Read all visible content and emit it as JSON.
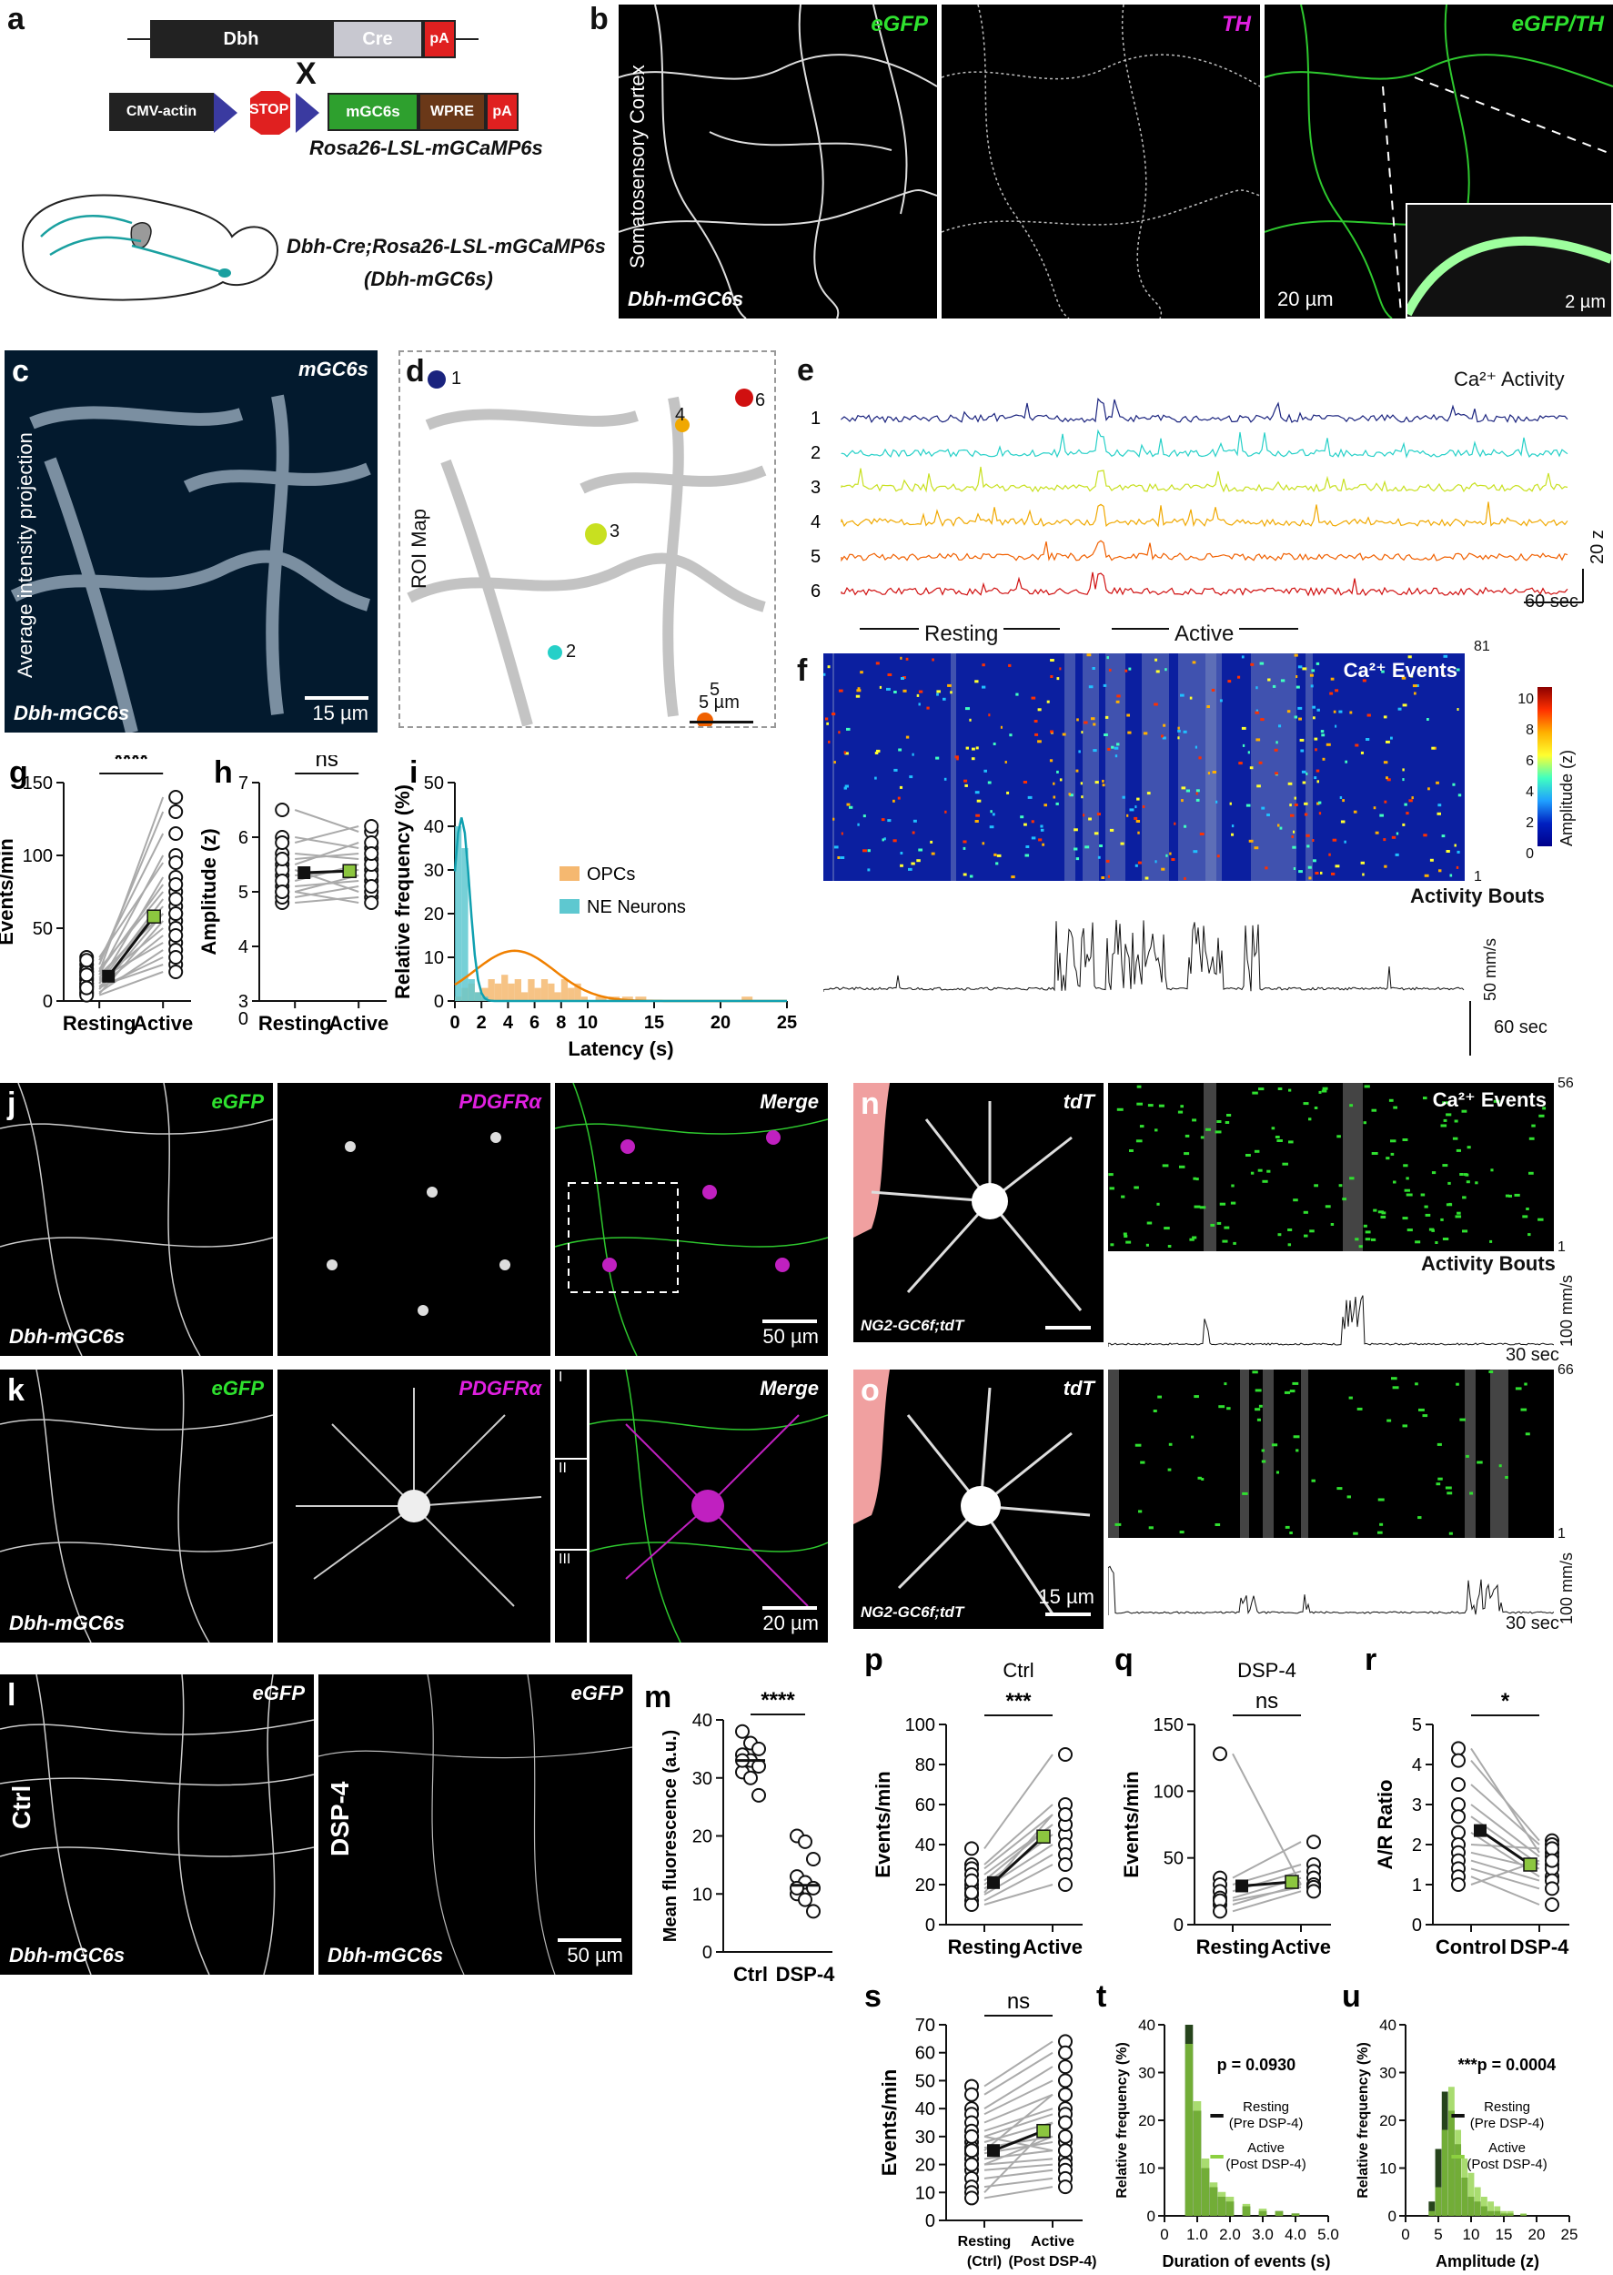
{
  "panels": {
    "a": {
      "letter": "a",
      "construct1": [
        "Dbh",
        "Cre",
        "pA"
      ],
      "cross": "X",
      "construct2": [
        "CMV-actin",
        "STOP",
        "mGC6s",
        "WPRE",
        "pA"
      ],
      "line_name": "Rosa26-LSL-mGCaMP6s",
      "cross_name": "Dbh-Cre;Rosa26-LSL-mGCaMP6s",
      "short_name": "(Dbh-mGC6s)"
    },
    "b": {
      "letter": "b",
      "channels": [
        "eGFP",
        "TH",
        "eGFP/TH"
      ],
      "side_label": "Somatosensory Cortex",
      "mouse": "Dbh-mGC6s",
      "scale1": "20 µm",
      "scale2": "2 µm"
    },
    "c": {
      "letter": "c",
      "label": "mGC6s",
      "side_label": "Average intensity projection",
      "mouse": "Dbh-mGC6s",
      "scale": "15 µm"
    },
    "d": {
      "letter": "d",
      "side_label": "ROI Map",
      "rois": [
        "1",
        "2",
        "3",
        "4",
        "5",
        "6"
      ],
      "scale": "5 µm"
    },
    "e": {
      "letter": "e",
      "title": "Ca²⁺ Activity",
      "traces": [
        "1",
        "2",
        "3",
        "4",
        "5",
        "6"
      ],
      "trace_colors": [
        "#1a237e",
        "#26d0c8",
        "#c8e020",
        "#f0a800",
        "#f06000",
        "#d01010"
      ],
      "yscale": "20 z",
      "xscale": "60 sec",
      "resting": "Resting",
      "active": "Active"
    },
    "f": {
      "letter": "f",
      "title": "Ca²⁺ Events",
      "top_index": "81",
      "bottom_index": "1",
      "colorbar_ticks": [
        "10",
        "8",
        "6",
        "4",
        "2",
        "0"
      ],
      "colorbar_label": "Amplitude (z)",
      "bouts_title": "Activity Bouts",
      "yscale": "50 mm/s",
      "xscale": "60 sec"
    },
    "g": {
      "letter": "g",
      "ylabel": "Events/min",
      "categories": [
        "Resting",
        "Active"
      ],
      "yticks": [
        "0",
        "50",
        "100",
        "150"
      ],
      "sig": "****"
    },
    "h": {
      "letter": "h",
      "ylabel": "Amplitude (z)",
      "categories": [
        "Resting",
        "Active"
      ],
      "yticks": [
        "0",
        "3",
        "4",
        "5",
        "6",
        "7"
      ],
      "sig": "ns"
    },
    "i": {
      "letter": "i",
      "ylabel": "Relative frequency (%)",
      "xlabel": "Latency (s)",
      "xticks": [
        "0",
        "2",
        "4",
        "6",
        "8",
        "10",
        "15",
        "20",
        "25"
      ],
      "yticks": [
        "0",
        "10",
        "20",
        "30",
        "40",
        "50"
      ],
      "legend": [
        "OPCs",
        "NE Neurons"
      ]
    },
    "j": {
      "letter": "j",
      "channels": [
        "eGFP",
        "PDGFRα",
        "Merge"
      ],
      "mouse": "Dbh-mGC6s",
      "scale": "50 µm"
    },
    "k": {
      "letter": "k",
      "channels": [
        "eGFP",
        "PDGFRα",
        "Merge"
      ],
      "mouse": "Dbh-mGC6s",
      "insets": [
        "I",
        "II",
        "III"
      ],
      "scale": "20 µm"
    },
    "l": {
      "letter": "l",
      "channels": [
        "eGFP",
        "eGFP"
      ],
      "conditions": [
        "Ctrl",
        "DSP-4"
      ],
      "mouse": "Dbh-mGC6s",
      "scale": "50 µm"
    },
    "m": {
      "letter": "m",
      "ylabel": "Mean fluorescence (a.u.)",
      "categories": [
        "Ctrl",
        "DSP-4"
      ],
      "yticks": [
        "0",
        "10",
        "20",
        "30",
        "40"
      ],
      "sig": "****"
    },
    "n": {
      "letter": "n",
      "label": "tdT",
      "mouse": "NG2-GC6f;tdT",
      "events_title": "Ca²⁺ Events",
      "top_index": "56",
      "bottom_index": "1",
      "bouts_title": "Activity Bouts",
      "yscale": "100 mm/s",
      "xscale": "30 sec"
    },
    "o": {
      "letter": "o",
      "label": "tdT",
      "mouse": "NG2-GC6f;tdT",
      "scale": "15 µm",
      "top_index": "66",
      "bottom_index": "1",
      "yscale": "100 mm/s",
      "xscale": "30 sec"
    },
    "p": {
      "letter": "p",
      "title": "Ctrl",
      "ylabel": "Events/min",
      "categories": [
        "Resting",
        "Active"
      ],
      "yticks": [
        "0",
        "20",
        "40",
        "60",
        "80",
        "100"
      ],
      "sig": "***"
    },
    "q": {
      "letter": "q",
      "title": "DSP-4",
      "ylabel": "Events/min",
      "categories": [
        "Resting",
        "Active"
      ],
      "yticks": [
        "0",
        "50",
        "100",
        "150"
      ],
      "sig": "ns"
    },
    "r": {
      "letter": "r",
      "ylabel": "A/R Ratio",
      "categories": [
        "Control",
        "DSP-4"
      ],
      "yticks": [
        "0",
        "1",
        "2",
        "3",
        "4",
        "5"
      ],
      "sig": "*"
    },
    "s": {
      "letter": "s",
      "ylabel": "Events/min",
      "categories": [
        "Resting (Ctrl)",
        "Active (Post DSP-4)"
      ],
      "yticks": [
        "0",
        "10",
        "20",
        "30",
        "40",
        "50",
        "60",
        "70"
      ],
      "sig": "ns"
    },
    "t": {
      "letter": "t",
      "ylabel": "Relative frequency (%)",
      "xlabel": "Duration of events (s)",
      "xticks": [
        "0",
        "1.0",
        "2.0",
        "3.0",
        "4.0",
        "5.0"
      ],
      "yticks": [
        "0",
        "10",
        "20",
        "30",
        "40"
      ],
      "pval": "p = 0.0930",
      "legend": [
        "Resting",
        "(Pre DSP-4)",
        "Active",
        "(Post DSP-4)"
      ]
    },
    "u": {
      "letter": "u",
      "ylabel": "Relative frequency (%)",
      "xlabel": "Amplitude (z)",
      "xticks": [
        "0",
        "5",
        "10",
        "15",
        "20",
        "25"
      ],
      "yticks": [
        "0",
        "10",
        "20",
        "30",
        "40"
      ],
      "pval": "***p = 0.0004",
      "legend": [
        "Resting",
        "(Pre DSP-4)",
        "Active",
        "(Post DSP-4)"
      ]
    }
  },
  "chart_data": [
    {
      "id": "g",
      "type": "scatter",
      "categories": [
        "Resting",
        "Active"
      ],
      "ylim": [
        0,
        150
      ],
      "series": [
        {
          "values": [
            [
              10,
              25
            ],
            [
              5,
              55
            ],
            [
              15,
              40
            ],
            [
              20,
              140
            ],
            [
              25,
              130
            ],
            [
              8,
              60
            ],
            [
              18,
              100
            ],
            [
              12,
              85
            ],
            [
              22,
              75
            ],
            [
              6,
              35
            ],
            [
              16,
              65
            ],
            [
              30,
              95
            ],
            [
              14,
              50
            ],
            [
              10,
              45
            ],
            [
              20,
              80
            ],
            [
              4,
              20
            ],
            [
              28,
              115
            ],
            [
              12,
              70
            ],
            [
              9,
              30
            ],
            [
              18,
              60
            ]
          ]
        }
      ],
      "means": [
        17,
        58
      ]
    },
    {
      "id": "h",
      "type": "scatter",
      "categories": [
        "Resting",
        "Active"
      ],
      "ylim": [
        3,
        7
      ],
      "series": [
        {
          "values": [
            [
              6.5,
              6.1
            ],
            [
              6.0,
              5.8
            ],
            [
              5.7,
              5.6
            ],
            [
              5.5,
              5.9
            ],
            [
              5.3,
              5.4
            ],
            [
              5.1,
              5.2
            ],
            [
              5.0,
              5.3
            ],
            [
              4.8,
              4.9
            ],
            [
              5.4,
              5.0
            ],
            [
              5.9,
              6.2
            ],
            [
              5.2,
              5.5
            ],
            [
              4.9,
              5.1
            ],
            [
              5.6,
              5.7
            ],
            [
              5.0,
              4.8
            ]
          ]
        }
      ],
      "means": [
        5.35,
        5.38
      ]
    },
    {
      "id": "i",
      "type": "bar",
      "x": [
        0.25,
        0.75,
        1.25,
        1.75,
        2.25,
        2.75,
        3.25,
        3.75,
        4.25,
        4.75,
        5.25,
        5.75,
        6.25,
        6.75,
        7.25,
        7.75,
        8.25,
        8.75,
        9.25,
        9.75,
        11,
        12,
        13,
        14,
        22
      ],
      "series": [
        {
          "name": "OPCs",
          "values": [
            1,
            3,
            4,
            2,
            3,
            5,
            4,
            6,
            4,
            5,
            2,
            5,
            3,
            5,
            4,
            2,
            5,
            3,
            4,
            1,
            1,
            1,
            1,
            1,
            1
          ]
        },
        {
          "name": "NE Neurons",
          "values": [
            40,
            35,
            5,
            2,
            1,
            0,
            0,
            0,
            0,
            0,
            0,
            0,
            0,
            0,
            0,
            0,
            0,
            0,
            0,
            0,
            0,
            0,
            0,
            0,
            0
          ]
        }
      ],
      "xlim": [
        0,
        25
      ],
      "ylim": [
        0,
        50
      ]
    },
    {
      "id": "m",
      "type": "scatter",
      "categories": [
        "Ctrl",
        "DSP-4"
      ],
      "ylim": [
        0,
        40
      ],
      "series": [
        {
          "name": "Ctrl",
          "values": [
            38,
            36,
            35,
            34,
            33,
            32,
            31,
            30,
            27,
            33
          ]
        },
        {
          "name": "DSP-4",
          "values": [
            20,
            19,
            16,
            13,
            12,
            11,
            10,
            9,
            7,
            11
          ]
        }
      ],
      "means": [
        33,
        11.5
      ]
    },
    {
      "id": "p",
      "type": "scatter",
      "categories": [
        "Resting",
        "Active"
      ],
      "ylim": [
        0,
        100
      ],
      "series": [
        {
          "values": [
            [
              38,
              85
            ],
            [
              30,
              60
            ],
            [
              28,
              55
            ],
            [
              25,
              50
            ],
            [
              20,
              45
            ],
            [
              18,
              40
            ],
            [
              15,
              35
            ],
            [
              12,
              30
            ],
            [
              22,
              50
            ],
            [
              10,
              20
            ],
            [
              16,
              55
            ]
          ]
        }
      ],
      "means": [
        21,
        44
      ]
    },
    {
      "id": "q",
      "type": "scatter",
      "categories": [
        "Resting",
        "Active"
      ],
      "ylim": [
        0,
        150
      ],
      "series": [
        {
          "values": [
            [
              128,
              30
            ],
            [
              35,
              62
            ],
            [
              30,
              45
            ],
            [
              25,
              40
            ],
            [
              20,
              35
            ],
            [
              15,
              30
            ],
            [
              18,
              28
            ],
            [
              10,
              25
            ]
          ]
        }
      ],
      "means": [
        29,
        32
      ]
    },
    {
      "id": "r",
      "type": "scatter",
      "categories": [
        "Control",
        "DSP-4"
      ],
      "ylim": [
        0,
        5
      ],
      "series": [
        {
          "values": [
            [
              4.4,
              1.8
            ],
            [
              4.1,
              2.1
            ],
            [
              3.5,
              2.0
            ],
            [
              3.0,
              1.7
            ],
            [
              2.7,
              1.5
            ],
            [
              2.3,
              1.2
            ],
            [
              2.0,
              1.9
            ],
            [
              1.8,
              1.4
            ],
            [
              1.6,
              1.1
            ],
            [
              1.4,
              0.9
            ],
            [
              1.2,
              0.5
            ],
            [
              1.0,
              1.6
            ]
          ]
        }
      ],
      "means": [
        2.35,
        1.5
      ]
    },
    {
      "id": "s",
      "type": "scatter",
      "categories": [
        "Resting (Ctrl)",
        "Active (Post DSP-4)"
      ],
      "ylim": [
        0,
        70
      ],
      "series": [
        {
          "values": [
            [
              48,
              64
            ],
            [
              45,
              60
            ],
            [
              40,
              55
            ],
            [
              38,
              50
            ],
            [
              35,
              45
            ],
            [
              32,
              40
            ],
            [
              30,
              38
            ],
            [
              28,
              35
            ],
            [
              26,
              30
            ],
            [
              24,
              28
            ],
            [
              22,
              25
            ],
            [
              20,
              22
            ],
            [
              18,
              20
            ],
            [
              15,
              18
            ],
            [
              12,
              15
            ],
            [
              10,
              35
            ],
            [
              8,
              12
            ],
            [
              30,
              25
            ],
            [
              25,
              45
            ],
            [
              20,
              30
            ]
          ]
        }
      ],
      "means": [
        25,
        32
      ]
    },
    {
      "id": "t",
      "type": "bar",
      "x": [
        0.75,
        1.0,
        1.25,
        1.5,
        1.75,
        2.0,
        2.5,
        3.0,
        3.5,
        4.0
      ],
      "series": [
        {
          "name": "Resting (Pre DSP-4)",
          "values": [
            40,
            22,
            10,
            6,
            4,
            3,
            2,
            1,
            1,
            0.5
          ]
        },
        {
          "name": "Active (Post DSP-4)",
          "values": [
            36,
            24,
            12,
            7,
            5,
            4,
            2.5,
            1.5,
            1,
            0.5
          ]
        }
      ],
      "xlim": [
        0,
        5
      ],
      "ylim": [
        0,
        40
      ],
      "annotation": "p = 0.0930"
    },
    {
      "id": "u",
      "type": "bar",
      "x": [
        4,
        5,
        6,
        7,
        8,
        9,
        10,
        11,
        12,
        13,
        14,
        15,
        16,
        18
      ],
      "series": [
        {
          "name": "Resting (Pre DSP-4)",
          "values": [
            3,
            14,
            26,
            22,
            15,
            8,
            4,
            3,
            2,
            1,
            1,
            0.5,
            0.5,
            0.3
          ]
        },
        {
          "name": "Active (Post DSP-4)",
          "values": [
            1,
            6,
            18,
            27,
            18,
            12,
            9,
            6,
            4,
            3,
            2,
            1,
            1,
            0.5
          ]
        }
      ],
      "xlim": [
        0,
        25
      ],
      "ylim": [
        0,
        40
      ],
      "annotation": "***p = 0.0004"
    }
  ]
}
